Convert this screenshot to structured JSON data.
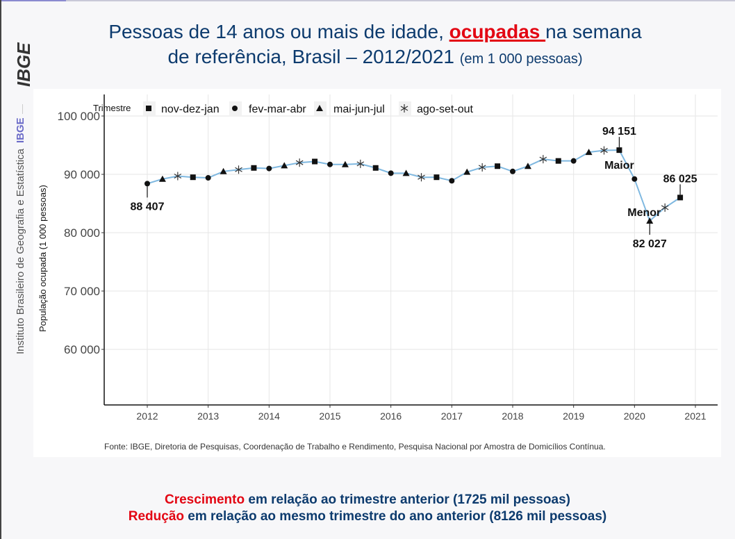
{
  "title": {
    "line1_pre": "Pessoas de 14 anos ou mais de idade, ",
    "line1_highlight": "ocupadas ",
    "line1_post": "na semana",
    "line2": "de referência,  Brasil – 2012/2021 ",
    "line2_small": "(em 1 000 pessoas)"
  },
  "sidebar": {
    "logo": "IBGE",
    "institute": "Instituto Brasileiro de Geografia e Estatística",
    "abbr": "IBGE"
  },
  "colors": {
    "title": "#0d3b6e",
    "highlight": "#e30613",
    "line": "#7fb8e0",
    "marker": "#111111"
  },
  "chart_data": {
    "type": "line",
    "title": "",
    "xlabel": "",
    "ylabel": "População ocupada (1 000 pessoas)",
    "ylim": [
      50000,
      103000
    ],
    "xlim": [
      2011.4,
      2021.2
    ],
    "yticks": [
      60000,
      70000,
      80000,
      90000,
      100000
    ],
    "ytick_labels": [
      "60 000",
      "70 000",
      "80 000",
      "90 000",
      "100 000"
    ],
    "xticks": [
      2012,
      2013,
      2014,
      2015,
      2016,
      2017,
      2018,
      2019,
      2020,
      2021
    ],
    "xtick_labels": [
      "2012",
      "2013",
      "2014",
      "2015",
      "2016",
      "2017",
      "2018",
      "2019",
      "2020",
      "2021"
    ],
    "grid": true,
    "legend": {
      "title": "Trimestre",
      "placement": "top-left",
      "entries": [
        {
          "label": "nov-dez-jan",
          "marker": "square"
        },
        {
          "label": "fev-mar-abr",
          "marker": "circle"
        },
        {
          "label": "mai-jun-jul",
          "marker": "triangle"
        },
        {
          "label": "ago-set-out",
          "marker": "asterisk"
        }
      ]
    },
    "points": [
      {
        "x": 2012.0,
        "y": 88407,
        "marker": "circle"
      },
      {
        "x": 2012.25,
        "y": 89200,
        "marker": "triangle"
      },
      {
        "x": 2012.5,
        "y": 89700,
        "marker": "asterisk"
      },
      {
        "x": 2012.75,
        "y": 89500,
        "marker": "square"
      },
      {
        "x": 2013.0,
        "y": 89400,
        "marker": "circle"
      },
      {
        "x": 2013.25,
        "y": 90500,
        "marker": "triangle"
      },
      {
        "x": 2013.5,
        "y": 90800,
        "marker": "asterisk"
      },
      {
        "x": 2013.75,
        "y": 91100,
        "marker": "square"
      },
      {
        "x": 2014.0,
        "y": 91000,
        "marker": "circle"
      },
      {
        "x": 2014.25,
        "y": 91500,
        "marker": "triangle"
      },
      {
        "x": 2014.5,
        "y": 92000,
        "marker": "asterisk"
      },
      {
        "x": 2014.75,
        "y": 92200,
        "marker": "square"
      },
      {
        "x": 2015.0,
        "y": 91700,
        "marker": "circle"
      },
      {
        "x": 2015.25,
        "y": 91700,
        "marker": "triangle"
      },
      {
        "x": 2015.5,
        "y": 91800,
        "marker": "asterisk"
      },
      {
        "x": 2015.75,
        "y": 91100,
        "marker": "square"
      },
      {
        "x": 2016.0,
        "y": 90200,
        "marker": "circle"
      },
      {
        "x": 2016.25,
        "y": 90200,
        "marker": "triangle"
      },
      {
        "x": 2016.5,
        "y": 89500,
        "marker": "asterisk"
      },
      {
        "x": 2016.75,
        "y": 89500,
        "marker": "square"
      },
      {
        "x": 2017.0,
        "y": 88900,
        "marker": "circle"
      },
      {
        "x": 2017.25,
        "y": 90400,
        "marker": "triangle"
      },
      {
        "x": 2017.5,
        "y": 91200,
        "marker": "asterisk"
      },
      {
        "x": 2017.75,
        "y": 91400,
        "marker": "square"
      },
      {
        "x": 2018.0,
        "y": 90500,
        "marker": "circle"
      },
      {
        "x": 2018.25,
        "y": 91400,
        "marker": "triangle"
      },
      {
        "x": 2018.5,
        "y": 92600,
        "marker": "asterisk"
      },
      {
        "x": 2018.75,
        "y": 92300,
        "marker": "square"
      },
      {
        "x": 2019.0,
        "y": 92300,
        "marker": "circle"
      },
      {
        "x": 2019.25,
        "y": 93800,
        "marker": "triangle"
      },
      {
        "x": 2019.5,
        "y": 94100,
        "marker": "asterisk"
      },
      {
        "x": 2019.75,
        "y": 94151,
        "marker": "square"
      },
      {
        "x": 2020.0,
        "y": 89200,
        "marker": "circle"
      },
      {
        "x": 2020.25,
        "y": 82027,
        "marker": "triangle"
      },
      {
        "x": 2020.5,
        "y": 84300,
        "marker": "asterisk"
      },
      {
        "x": 2020.75,
        "y": 86025,
        "marker": "square"
      }
    ],
    "annotations": [
      {
        "point_index": 0,
        "text": "88 407",
        "position": "below"
      },
      {
        "point_index": 31,
        "text": "94 151",
        "position": "above"
      },
      {
        "point_index": 31,
        "text": "Maior",
        "position": "below"
      },
      {
        "point_index": 33,
        "text": "82 027",
        "position": "below"
      },
      {
        "point_index": 33,
        "text": "Menor",
        "position": "left"
      },
      {
        "point_index": 35,
        "text": "86 025",
        "position": "above"
      }
    ],
    "source": "Fonte: IBGE, Diretoria de Pesquisas, Coordenação de Trabalho e Rendimento, Pesquisa Nacional por Amostra de Domicílios Contínua."
  },
  "footer": {
    "line1_red": "Crescimento",
    "line1_rest": " em relação ao trimestre anterior (1725 mil pessoas)",
    "line2_red": "Redução",
    "line2_rest": " em relação ao mesmo trimestre do ano anterior (8126 mil pessoas)"
  }
}
